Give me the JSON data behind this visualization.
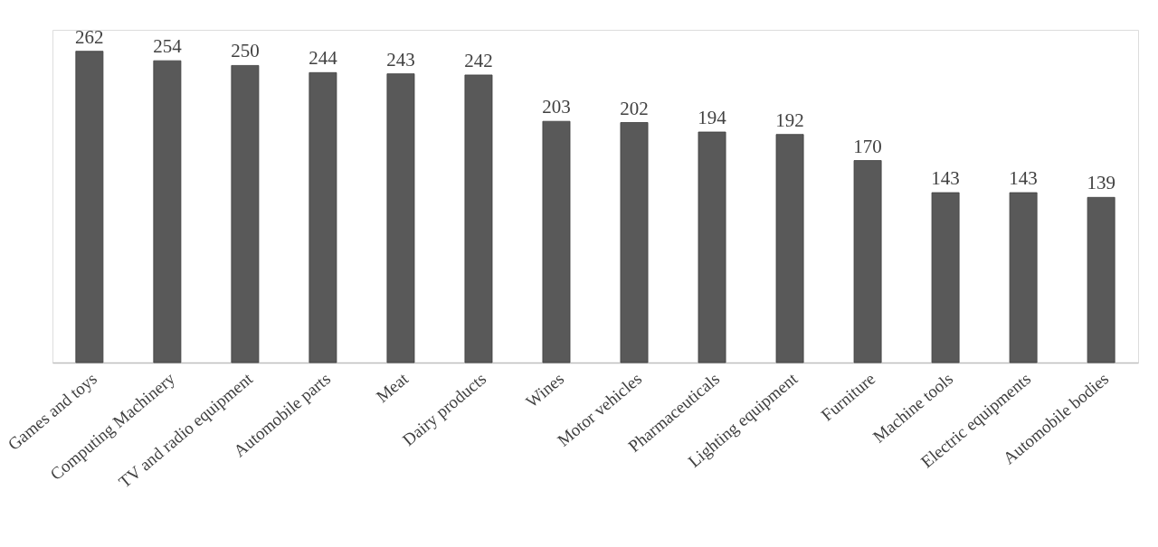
{
  "chart_data": {
    "type": "bar",
    "categories": [
      "Games and toys",
      "Computing Machinery",
      "TV and radio equipment",
      "Automobile parts",
      "Meat",
      "Dairy products",
      "Wines",
      "Motor vehicles",
      "Pharmaceuticals",
      "Lighting equipment",
      "Furniture",
      "Machine tools",
      "Electric equipments",
      "Automobile bodies"
    ],
    "values": [
      262,
      254,
      250,
      244,
      243,
      242,
      203,
      202,
      194,
      192,
      170,
      143,
      143,
      139
    ],
    "color": "#595959",
    "data_labels": true
  }
}
